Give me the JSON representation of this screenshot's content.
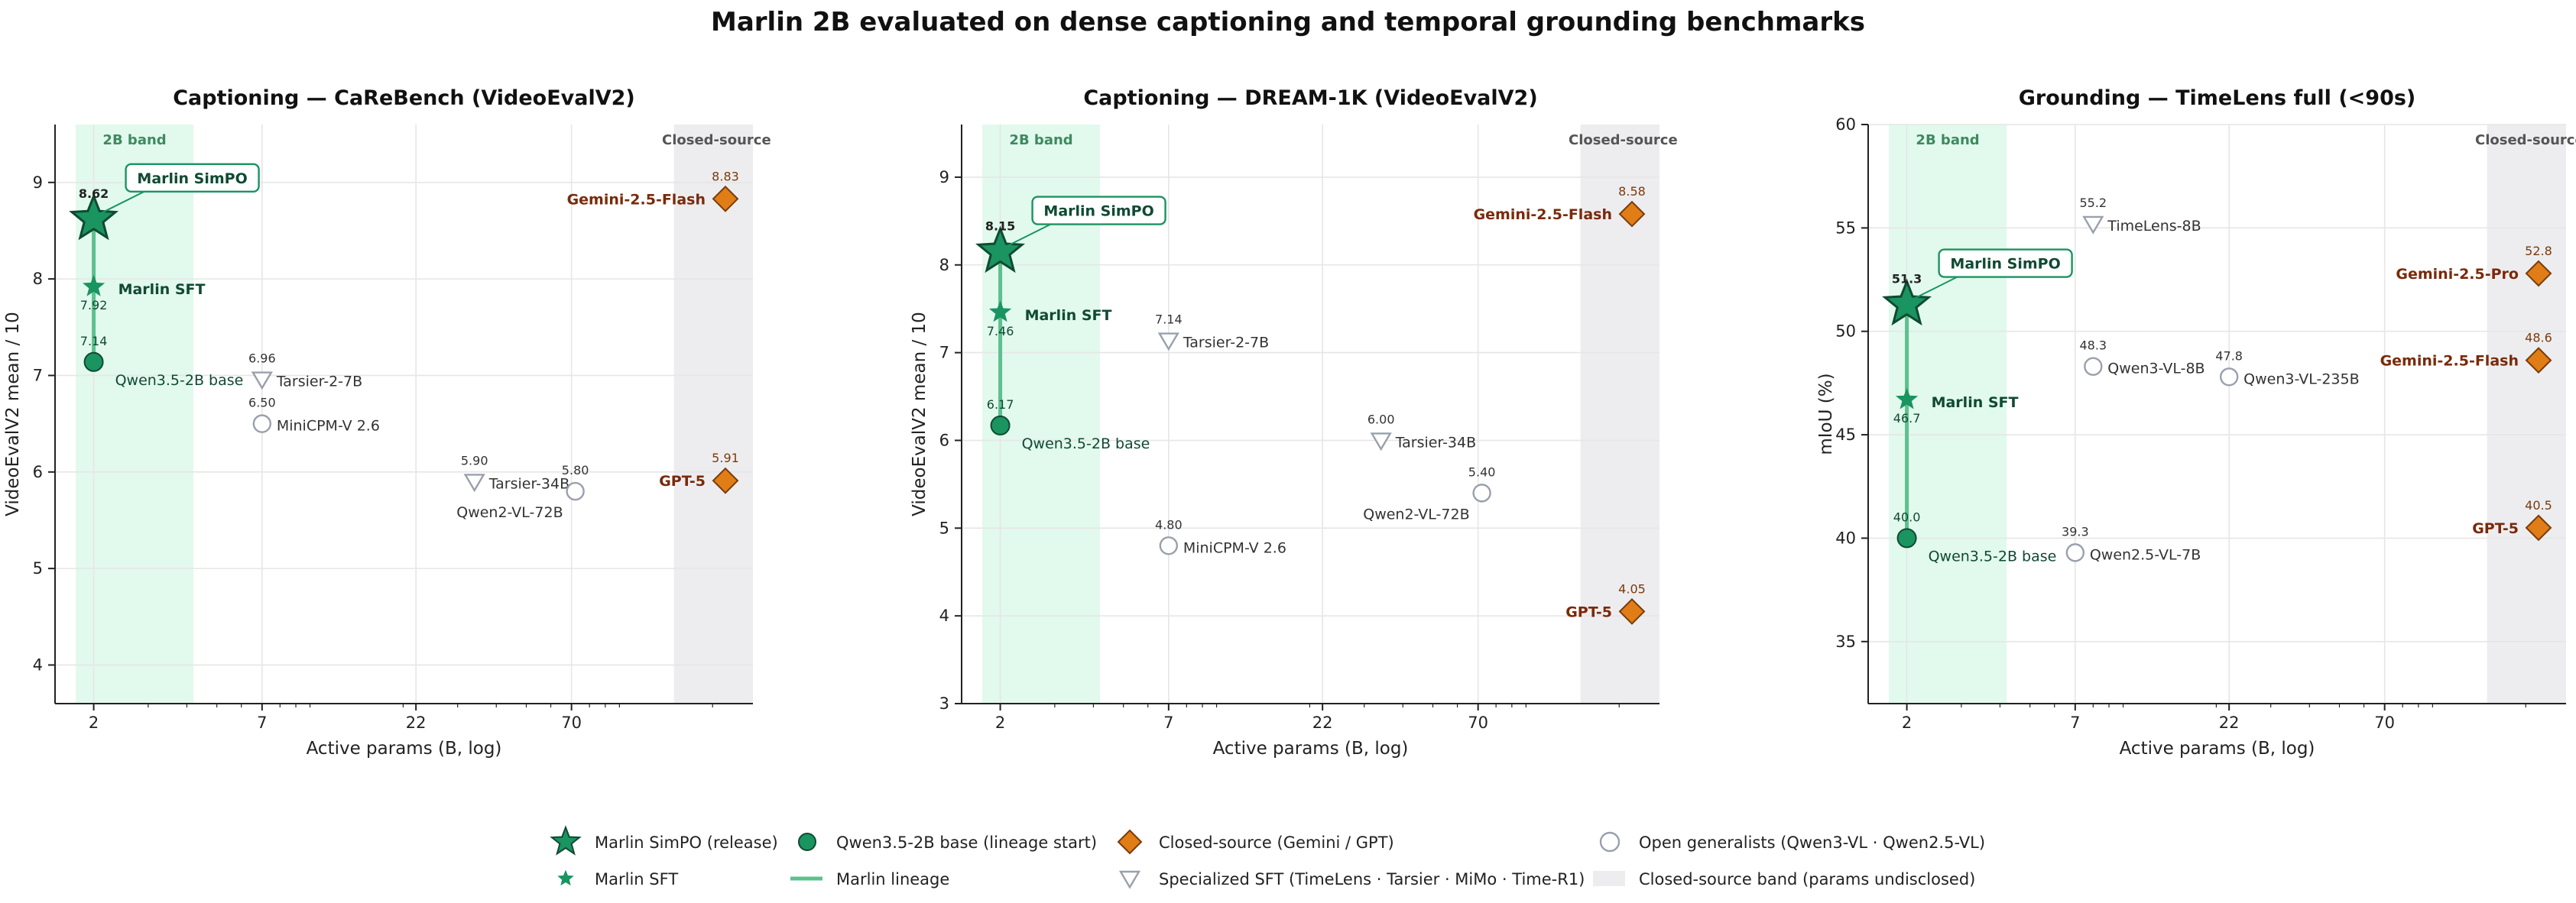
{
  "figure": {
    "title": "Marlin 2B evaluated on dense captioning and temporal grounding benchmarks"
  },
  "colors": {
    "marlin": "#1a9460",
    "marlin_dark": "#0f4a32",
    "lineage": "#5ec08f",
    "base": "#1a9460",
    "closed": "#e07d17",
    "closed_edge": "#7a3b0a",
    "closed_text": "#7a2a0a",
    "open": "#9aa0ab",
    "open_text": "#333333",
    "band_2b": "#e2f9ed",
    "band_2b_text": "#3d8a60",
    "band_closed": "#ededf0",
    "band_closed_text": "#555555"
  },
  "legend": {
    "items": [
      {
        "key": "simpo",
        "label": "Marlin SimPO (release)"
      },
      {
        "key": "sft",
        "label": "Marlin SFT"
      },
      {
        "key": "base",
        "label": "Qwen3.5-2B base (lineage start)"
      },
      {
        "key": "lineage",
        "label": "Marlin lineage"
      },
      {
        "key": "closed",
        "label": "Closed-source (Gemini / GPT)"
      },
      {
        "key": "specialized",
        "label": "Specialized SFT (TimeLens · Tarsier · MiMo · Time-R1)"
      },
      {
        "key": "open",
        "label": "Open generalists (Qwen3-VL · Qwen2.5-VL)"
      },
      {
        "key": "band",
        "label": "Closed-source band (params undisclosed)"
      }
    ]
  },
  "chart_data": [
    {
      "type": "scatter",
      "title": "Captioning — CaReBench (VideoEvalV2)",
      "xlabel": "Active params (B, log)",
      "ylabel": "VideoEvalV2 mean / 10",
      "x_scale": "log",
      "x_ticks": [
        2,
        7,
        22,
        70
      ],
      "ylim": [
        3.6,
        9.6
      ],
      "y_ticks": [
        4,
        5,
        6,
        7,
        8,
        9
      ],
      "grid": true,
      "band_2b_label": "2B band",
      "band_closed_label": "Closed-source",
      "lineage": {
        "simpo": {
          "name": "Marlin SimPO",
          "x": 2,
          "y": 8.62,
          "label": "8.62"
        },
        "sft": {
          "name": "Marlin SFT",
          "x": 2,
          "y": 7.92,
          "label": "7.92"
        },
        "base": {
          "name": "Qwen3.5-2B base",
          "x": 2,
          "y": 7.14,
          "label": "7.14"
        }
      },
      "points": [
        {
          "name": "Tarsier-2-7B",
          "x": 7,
          "y": 6.96,
          "label": "6.96",
          "kind": "specialized"
        },
        {
          "name": "MiniCPM-V 2.6",
          "x": 7,
          "y": 6.5,
          "label": "6.50",
          "kind": "open"
        },
        {
          "name": "Tarsier-34B",
          "x": 34,
          "y": 5.9,
          "label": "5.90",
          "kind": "specialized"
        },
        {
          "name": "Qwen2-VL-72B",
          "x": 72,
          "y": 5.8,
          "label": "5.80",
          "kind": "open"
        }
      ],
      "closed": [
        {
          "name": "Gemini-2.5-Flash",
          "y": 8.83,
          "label": "8.83"
        },
        {
          "name": "GPT-5",
          "y": 5.91,
          "label": "5.91"
        }
      ]
    },
    {
      "type": "scatter",
      "title": "Captioning — DREAM-1K (VideoEvalV2)",
      "xlabel": "Active params (B, log)",
      "ylabel": "VideoEvalV2 mean / 10",
      "x_scale": "log",
      "x_ticks": [
        2,
        7,
        22,
        70
      ],
      "ylim": [
        3.0,
        9.6
      ],
      "y_ticks": [
        3,
        4,
        5,
        6,
        7,
        8,
        9
      ],
      "grid": true,
      "band_2b_label": "2B band",
      "band_closed_label": "Closed-source",
      "lineage": {
        "simpo": {
          "name": "Marlin SimPO",
          "x": 2,
          "y": 8.15,
          "label": "8.15"
        },
        "sft": {
          "name": "Marlin SFT",
          "x": 2,
          "y": 7.46,
          "label": "7.46"
        },
        "base": {
          "name": "Qwen3.5-2B base",
          "x": 2,
          "y": 6.17,
          "label": "6.17"
        }
      },
      "points": [
        {
          "name": "Tarsier-2-7B",
          "x": 7,
          "y": 7.14,
          "label": "7.14",
          "kind": "specialized"
        },
        {
          "name": "Tarsier-34B",
          "x": 34,
          "y": 6.0,
          "label": "6.00",
          "kind": "specialized"
        },
        {
          "name": "Qwen2-VL-72B",
          "x": 72,
          "y": 5.4,
          "label": "5.40",
          "kind": "open"
        },
        {
          "name": "MiniCPM-V 2.6",
          "x": 7,
          "y": 4.8,
          "label": "4.80",
          "kind": "open"
        }
      ],
      "closed": [
        {
          "name": "Gemini-2.5-Flash",
          "y": 8.58,
          "label": "8.58"
        },
        {
          "name": "GPT-5",
          "y": 4.05,
          "label": "4.05"
        }
      ]
    },
    {
      "type": "scatter",
      "title": "Grounding — TimeLens full (<90s)",
      "xlabel": "Active params (B, log)",
      "ylabel": "mIoU (%)",
      "x_scale": "log",
      "x_ticks": [
        2,
        7,
        22,
        70
      ],
      "ylim": [
        32,
        60
      ],
      "y_ticks": [
        35,
        40,
        45,
        50,
        55,
        60
      ],
      "grid": true,
      "band_2b_label": "2B band",
      "band_closed_label": "Closed-source",
      "lineage": {
        "simpo": {
          "name": "Marlin SimPO",
          "x": 2,
          "y": 51.3,
          "label": "51.3"
        },
        "sft": {
          "name": "Marlin SFT",
          "x": 2,
          "y": 46.7,
          "label": "46.7"
        },
        "base": {
          "name": "Qwen3.5-2B base",
          "x": 2,
          "y": 40.0,
          "label": "40.0"
        }
      },
      "points": [
        {
          "name": "TimeLens-8B",
          "x": 8,
          "y": 55.2,
          "label": "55.2",
          "kind": "specialized"
        },
        {
          "name": "Qwen3-VL-8B",
          "x": 8,
          "y": 48.3,
          "label": "48.3",
          "kind": "open"
        },
        {
          "name": "Qwen3-VL-235B",
          "x": 22,
          "y": 47.8,
          "label": "47.8",
          "kind": "open"
        },
        {
          "name": "Qwen2.5-VL-7B",
          "x": 7,
          "y": 39.3,
          "label": "39.3",
          "kind": "open"
        }
      ],
      "closed": [
        {
          "name": "Gemini-2.5-Pro",
          "y": 52.8,
          "label": "52.8"
        },
        {
          "name": "Gemini-2.5-Flash",
          "y": 48.6,
          "label": "48.6"
        },
        {
          "name": "GPT-5",
          "y": 40.5,
          "label": "40.5"
        }
      ]
    }
  ]
}
